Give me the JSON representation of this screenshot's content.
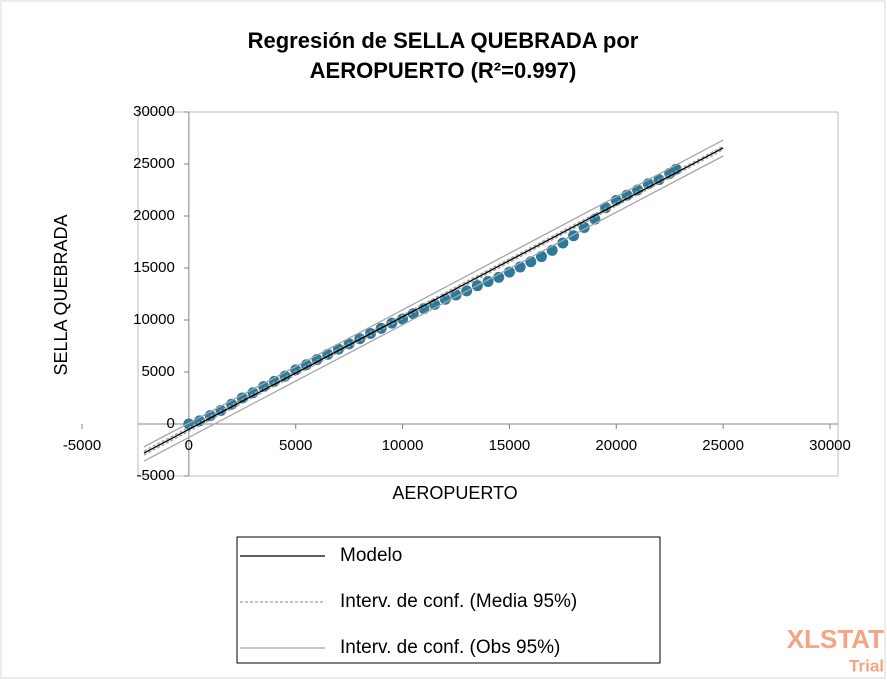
{
  "chart_data": {
    "type": "scatter",
    "title": [
      "Regresión de SELLA QUEBRADA por",
      "AEROPUERTO (R²=0.997)"
    ],
    "x_label": "AEROPUERTO",
    "y_label": "SELLA QUEBRADA",
    "xlim": [
      -5000,
      30000
    ],
    "ylim": [
      -5000,
      30000
    ],
    "xticks": [
      -5000,
      0,
      5000,
      10000,
      15000,
      20000,
      25000,
      30000
    ],
    "yticks": [
      -5000,
      0,
      5000,
      10000,
      15000,
      20000,
      25000,
      30000
    ],
    "grid": false,
    "points": {
      "color": "#2b7a9b",
      "x": [
        0,
        500,
        1000,
        1500,
        2000,
        2500,
        3000,
        3500,
        4000,
        4500,
        5000,
        5500,
        6000,
        6500,
        7000,
        7500,
        8000,
        8500,
        9000,
        9500,
        10000,
        10500,
        11000,
        11500,
        12000,
        12500,
        13000,
        13500,
        14000,
        14500,
        15000,
        15500,
        16000,
        16500,
        17000,
        17500,
        18000,
        18500,
        19000,
        19500,
        20000,
        20500,
        21000,
        21500,
        22000,
        22500,
        22800
      ],
      "y": [
        0,
        300,
        800,
        1300,
        1900,
        2500,
        3000,
        3600,
        4100,
        4600,
        5200,
        5700,
        6200,
        6700,
        7200,
        7700,
        8200,
        8700,
        9200,
        9700,
        10100,
        10600,
        11100,
        11500,
        12000,
        12400,
        12800,
        13300,
        13700,
        14100,
        14600,
        15100,
        15600,
        16100,
        16700,
        17400,
        18100,
        18900,
        19700,
        20800,
        21500,
        22000,
        22500,
        23100,
        23500,
        24100,
        24500
      ]
    },
    "series": [
      {
        "name": "Modelo",
        "color": "#000000",
        "style": "solid",
        "lines": [
          {
            "x": [
              -2100,
              25000
            ],
            "y": [
              -2790,
              26540
            ]
          }
        ]
      },
      {
        "name": "Interv. de conf. (Media 95%)",
        "color": "#a0a0a0",
        "style": "dashed",
        "lines": [
          {
            "x": [
              -2100,
              25000
            ],
            "y": [
              -2600,
              26700
            ]
          },
          {
            "x": [
              -2100,
              25000
            ],
            "y": [
              -2980,
              26380
            ]
          }
        ]
      },
      {
        "name": "Interv. de conf. (Obs 95%)",
        "color": "#a6a6a6",
        "style": "solid",
        "lines": [
          {
            "x": [
              -2100,
              25000
            ],
            "y": [
              -2200,
              27300
            ]
          },
          {
            "x": [
              -2100,
              25000
            ],
            "y": [
              -3560,
              25770
            ]
          }
        ]
      }
    ],
    "legend": "bottom",
    "watermark": {
      "brand": "XLSTAT",
      "note": "Trial"
    }
  }
}
